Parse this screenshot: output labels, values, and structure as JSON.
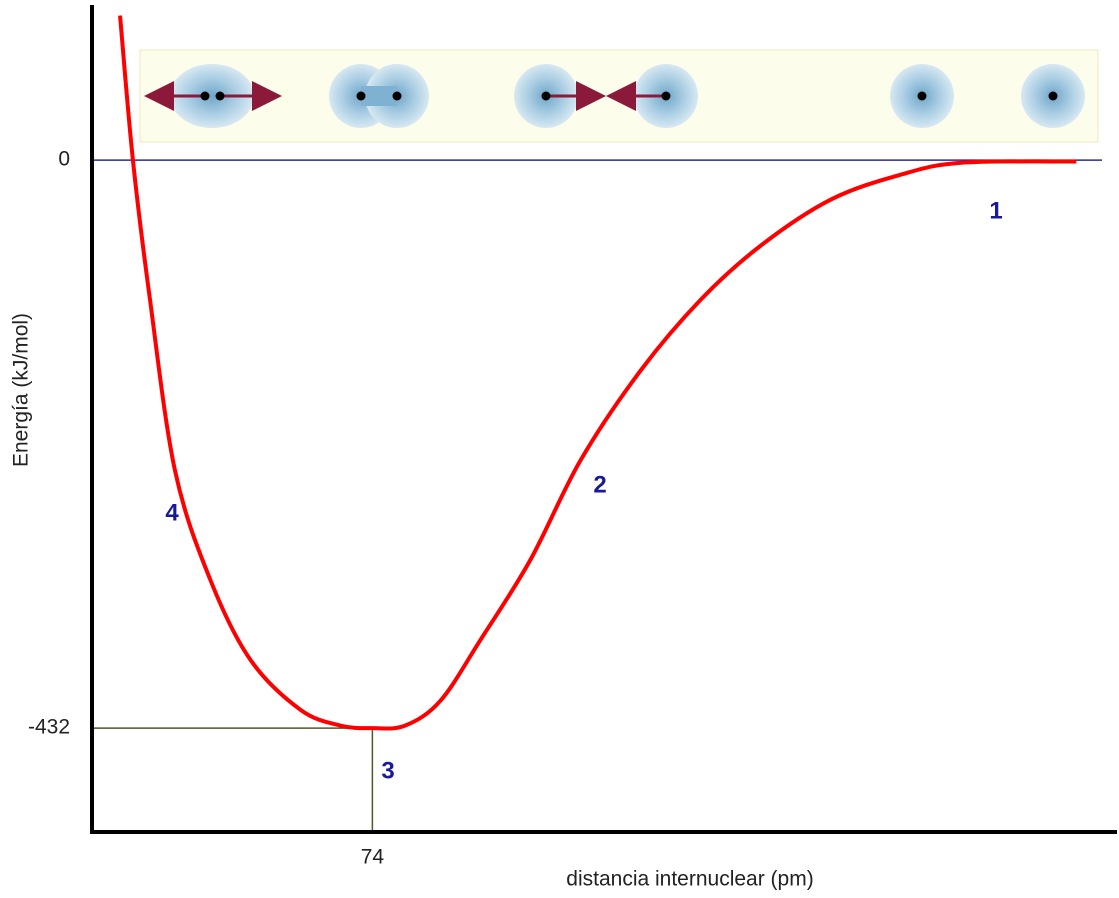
{
  "chart_data": {
    "type": "line",
    "x_label": "distancia internuclear (pm)",
    "y_label": "Energía (kJ/mol)",
    "x": [
      7.4,
      10.8,
      15.3,
      21.9,
      31.2,
      41.8,
      55,
      65.5,
      74,
      82.7,
      92,
      102.5,
      115.7,
      129,
      144.8,
      160.7,
      176.5,
      195,
      213.5,
      229.4,
      259.8
    ],
    "values": [
      110,
      0,
      -106,
      -236,
      -319,
      -380,
      -418,
      -430,
      -432,
      -430,
      -411,
      -365,
      -304,
      -228,
      -160,
      -106,
      -65,
      -30,
      -11,
      -2,
      -1
    ],
    "color": "#ff0000",
    "xlim": [
      0,
      270
    ],
    "ylim": [
      -511,
      118
    ],
    "xticks": [
      74
    ],
    "yticks": [
      -432,
      0
    ],
    "annotations": [
      "1",
      "2",
      "3",
      "4"
    ]
  }
}
